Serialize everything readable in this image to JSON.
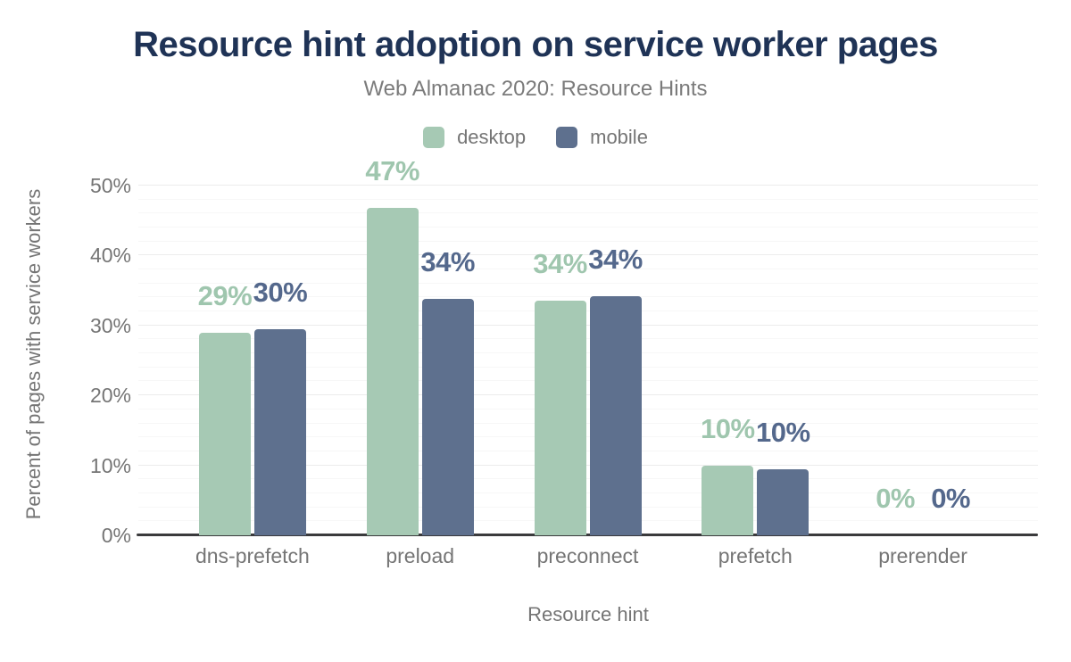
{
  "chart_data": {
    "type": "bar",
    "title": "Resource hint adoption on service worker pages",
    "subtitle": "Web Almanac 2020: Resource Hints",
    "xlabel": "Resource hint",
    "ylabel": "Percent of pages with service workers",
    "categories": [
      "dns-prefetch",
      "preload",
      "preconnect",
      "prefetch",
      "prerender"
    ],
    "series": [
      {
        "name": "desktop",
        "color": "#a6c9b4",
        "label_color": "#9fc6ae",
        "values": [
          28.9,
          46.8,
          33.5,
          9.9,
          0
        ],
        "labels": [
          "29%",
          "47%",
          "34%",
          "10%",
          "0%"
        ]
      },
      {
        "name": "mobile",
        "color": "#5e708e",
        "label_color": "#54688c",
        "values": [
          29.5,
          33.8,
          34.2,
          9.5,
          0
        ],
        "labels": [
          "30%",
          "34%",
          "34%",
          "10%",
          "0%"
        ]
      }
    ],
    "y_axis": {
      "max": 51.9,
      "ticks": [
        {
          "value": 0,
          "label": "0%"
        },
        {
          "value": 10,
          "label": "10%"
        },
        {
          "value": 20,
          "label": "20%"
        },
        {
          "value": 30,
          "label": "30%"
        },
        {
          "value": 40,
          "label": "40%"
        },
        {
          "value": 50,
          "label": "50%"
        }
      ]
    },
    "grid": {
      "minor_step": 2,
      "major_step": 10,
      "grid_max": 50
    },
    "legend_position": "top",
    "colors": {
      "background": "#ffffff",
      "title": "#1f3356",
      "subtitle": "#7b7b7b",
      "axis_text": "#757575",
      "axis_line": "#3a3a3c",
      "grid_major": "#ececec",
      "grid_minor": "#f7f7f7"
    }
  }
}
